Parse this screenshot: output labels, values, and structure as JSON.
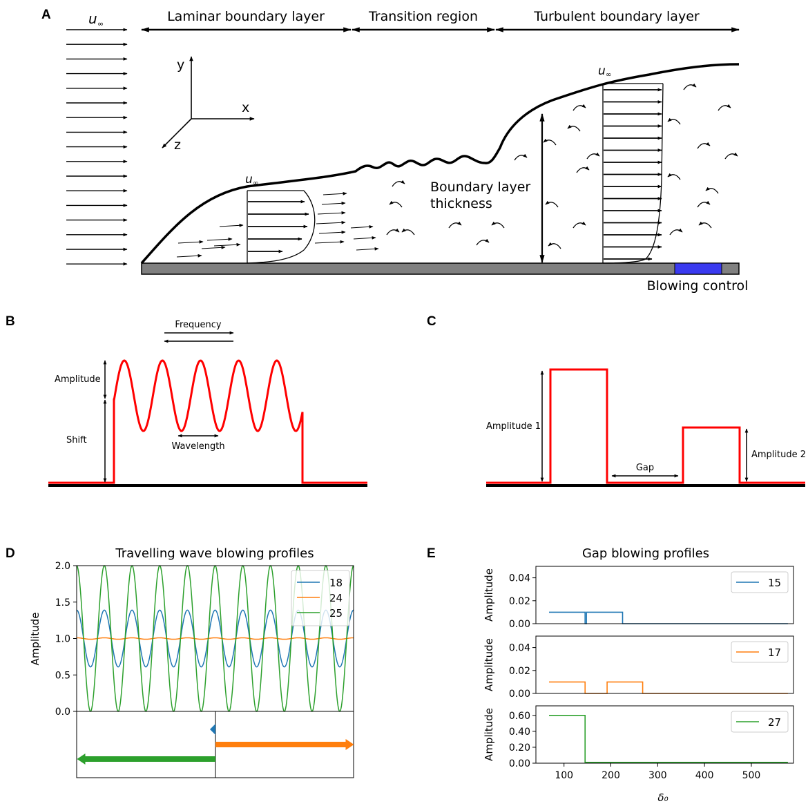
{
  "panel_a": {
    "label": "A",
    "freestream_symbol": "u",
    "infinity_subscript": "∞",
    "laminar": "Laminar boundary layer",
    "transition": "Transition region",
    "turbulent": "Turbulent boundary layer",
    "axis_y": "y",
    "axis_x": "x",
    "axis_z": "z",
    "thickness_line1": "Boundary layer",
    "thickness_line2": "thickness",
    "blowing": "Blowing control",
    "blowing_color": "#3a3af0"
  },
  "panel_b": {
    "label": "B",
    "frequency": "Frequency",
    "amplitude": "Amplitude",
    "shift": "Shift",
    "wavelength": "Wavelength"
  },
  "panel_c": {
    "label": "C",
    "amplitude1": "Amplitude 1",
    "amplitude2": "Amplitude 2",
    "gap": "Gap"
  },
  "panel_d": {
    "label": "D",
    "ylabel": "Amplitude"
  },
  "panel_e": {
    "label": "E",
    "ylabel": "Amplitude",
    "xlabel": "δ₀"
  },
  "colors": {
    "profile": "#ff0000",
    "blue": "#1f77b4",
    "orange": "#ff7f0e",
    "green": "#2ca02c"
  },
  "chart_data": [
    {
      "type": "line",
      "title": "Travelling wave blowing profiles",
      "xlabel": "",
      "ylabel": "Amplitude",
      "ylim": [
        0.0,
        2.0
      ],
      "yticks": [
        "0.0",
        "0.5",
        "1.0",
        "1.5",
        "2.0"
      ],
      "cycles": 10,
      "series": [
        {
          "name": "18",
          "color": "#1f77b4",
          "mean": 1.0,
          "amplitude": 0.39,
          "direction": "left",
          "arrow_length": 0.02
        },
        {
          "name": "24",
          "color": "#ff7f0e",
          "mean": 1.0,
          "amplitude": 0.01,
          "direction": "right",
          "arrow_length": 0.5
        },
        {
          "name": "25",
          "color": "#2ca02c",
          "mean": 1.0,
          "amplitude": 1.0,
          "direction": "left",
          "arrow_length": 0.5
        }
      ]
    },
    {
      "type": "line",
      "title": "Gap blowing profiles",
      "xlabel": "δ₀",
      "ylabel": "Amplitude",
      "xlim": [
        40,
        590
      ],
      "xticks": [
        "100",
        "200",
        "300",
        "400",
        "500"
      ],
      "subplots": [
        {
          "name": "15",
          "color": "#1f77b4",
          "ylim": [
            0,
            0.05
          ],
          "yticks": [
            "0.00",
            "0.02",
            "0.04"
          ],
          "x": [
            68,
            145,
            145,
            148,
            148,
            225,
            225,
            578
          ],
          "y": [
            0.01,
            0.01,
            0.0,
            0.0,
            0.01,
            0.01,
            0.0,
            0.0
          ]
        },
        {
          "name": "17",
          "color": "#ff7f0e",
          "ylim": [
            0,
            0.05
          ],
          "yticks": [
            "0.00",
            "0.02",
            "0.04"
          ],
          "x": [
            68,
            145,
            145,
            192,
            192,
            268,
            268,
            578
          ],
          "y": [
            0.01,
            0.01,
            0.0,
            0.0,
            0.01,
            0.01,
            0.0,
            0.0
          ]
        },
        {
          "name": "27",
          "color": "#2ca02c",
          "ylim": [
            0,
            0.72
          ],
          "yticks": [
            "0.00",
            "0.20",
            "0.40",
            "0.60"
          ],
          "x": [
            68,
            145,
            145,
            578
          ],
          "y": [
            0.6,
            0.6,
            0.01,
            0.01
          ]
        }
      ]
    }
  ]
}
